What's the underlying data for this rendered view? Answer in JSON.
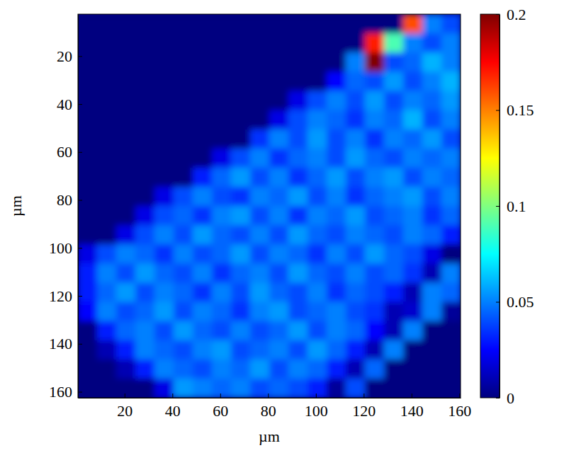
{
  "chart_data": {
    "type": "heatmap",
    "xlabel": "µm",
    "ylabel": "µm",
    "xlim": [
      0.5,
      160.5
    ],
    "ylim": [
      2.5,
      162.5
    ],
    "xticks": [
      20,
      40,
      60,
      80,
      100,
      120,
      140,
      160
    ],
    "yticks": [
      20,
      40,
      60,
      80,
      100,
      120,
      140,
      160
    ],
    "x": [
      4.5,
      12.5,
      20.5,
      28.5,
      36.5,
      44.5,
      52.5,
      60.5,
      68.5,
      76.5,
      84.5,
      92.5,
      100.5,
      108.5,
      116.5,
      124.5,
      132.5,
      140.5,
      148.5,
      156.5
    ],
    "y": [
      6.5,
      14.5,
      22.5,
      30.5,
      38.5,
      46.5,
      54.5,
      62.5,
      70.5,
      78.5,
      86.5,
      94.5,
      102.5,
      110.5,
      118.5,
      126.5,
      134.5,
      142.5,
      150.5,
      158.5
    ],
    "cells": [
      [
        0,
        0,
        0,
        0,
        0,
        0,
        0,
        0,
        0,
        0,
        0,
        0,
        0,
        0,
        0,
        0,
        0,
        0.16,
        0.05,
        0.04
      ],
      [
        0,
        0,
        0,
        0,
        0,
        0,
        0,
        0,
        0,
        0,
        0,
        0,
        0,
        0,
        0,
        0.17,
        0.09,
        0.05,
        0.04,
        0.05
      ],
      [
        0,
        0,
        0,
        0,
        0,
        0,
        0,
        0,
        0,
        0,
        0,
        0,
        0,
        0,
        0.05,
        0.2,
        0.04,
        0.045,
        0.06,
        0.05
      ],
      [
        0,
        0,
        0,
        0,
        0,
        0,
        0,
        0,
        0,
        0,
        0,
        0,
        0,
        0.025,
        0.045,
        0.04,
        0.055,
        0.04,
        0.05,
        0.06
      ],
      [
        0,
        0,
        0,
        0,
        0,
        0,
        0,
        0,
        0,
        0,
        0,
        0.02,
        0.04,
        0.05,
        0.04,
        0.055,
        0.04,
        0.05,
        0.045,
        0.055
      ],
      [
        0,
        0,
        0,
        0,
        0,
        0,
        0,
        0,
        0,
        0,
        0.02,
        0.04,
        0.05,
        0.045,
        0.035,
        0.05,
        0.045,
        0.06,
        0.04,
        0.05
      ],
      [
        0,
        0,
        0,
        0,
        0,
        0,
        0,
        0,
        0,
        0.035,
        0.05,
        0.04,
        0.055,
        0.04,
        0.05,
        0.035,
        0.05,
        0.045,
        0.055,
        0.04
      ],
      [
        0,
        0,
        0,
        0,
        0,
        0,
        0,
        0.02,
        0.04,
        0.05,
        0.035,
        0.045,
        0.05,
        0.04,
        0.055,
        0.045,
        0.04,
        0.05,
        0.045,
        0.05
      ],
      [
        0,
        0,
        0,
        0,
        0,
        0,
        0.03,
        0.045,
        0.055,
        0.04,
        0.05,
        0.035,
        0.045,
        0.055,
        0.04,
        0.05,
        0.055,
        0.04,
        0.05,
        0.045
      ],
      [
        0,
        0,
        0,
        0,
        0.02,
        0.04,
        0.05,
        0.04,
        0.035,
        0.05,
        0.045,
        0.055,
        0.04,
        0.05,
        0.035,
        0.045,
        0.05,
        0.055,
        0.04,
        0.05
      ],
      [
        0,
        0,
        0,
        0.02,
        0.04,
        0.045,
        0.035,
        0.05,
        0.055,
        0.04,
        0.05,
        0.035,
        0.05,
        0.045,
        0.055,
        0.04,
        0.045,
        0.05,
        0.035,
        0.045
      ],
      [
        0,
        0,
        0.02,
        0.04,
        0.05,
        0.04,
        0.055,
        0.045,
        0.04,
        0.05,
        0.04,
        0.055,
        0.045,
        0.04,
        0.05,
        0.045,
        0.04,
        0.05,
        0.045,
        0.03
      ],
      [
        0.02,
        0.04,
        0.05,
        0.045,
        0.035,
        0.05,
        0.04,
        0.045,
        0.055,
        0.04,
        0.05,
        0.045,
        0.035,
        0.05,
        0.04,
        0.055,
        0.045,
        0.04,
        0.02,
        0
      ],
      [
        0.03,
        0.05,
        0.04,
        0.055,
        0.045,
        0.04,
        0.05,
        0.035,
        0.045,
        0.05,
        0.04,
        0.055,
        0.045,
        0.04,
        0.05,
        0.04,
        0.045,
        0.035,
        0.01,
        0.05
      ],
      [
        0.03,
        0.045,
        0.055,
        0.04,
        0.05,
        0.045,
        0.035,
        0.05,
        0.04,
        0.055,
        0.045,
        0.04,
        0.05,
        0.035,
        0.045,
        0.04,
        0.03,
        0.01,
        0.05,
        0.045
      ],
      [
        0.025,
        0.05,
        0.04,
        0.045,
        0.055,
        0.04,
        0.05,
        0.045,
        0.035,
        0.05,
        0.055,
        0.04,
        0.045,
        0.05,
        0.04,
        0.035,
        0.01,
        0.015,
        0.05,
        0.005
      ],
      [
        0,
        0.03,
        0.045,
        0.05,
        0.04,
        0.055,
        0.045,
        0.04,
        0.05,
        0.04,
        0.045,
        0.055,
        0.04,
        0.05,
        0.045,
        0.025,
        0.01,
        0.05,
        0,
        0
      ],
      [
        0,
        0.01,
        0.03,
        0.05,
        0.045,
        0.04,
        0.05,
        0.055,
        0.04,
        0.045,
        0.05,
        0.04,
        0.055,
        0.045,
        0.03,
        0.01,
        0.05,
        0,
        0,
        0
      ],
      [
        0,
        0,
        0.01,
        0.03,
        0.05,
        0.045,
        0.04,
        0.05,
        0.045,
        0.055,
        0.04,
        0.05,
        0.045,
        0.03,
        0.01,
        0.045,
        0,
        0,
        0,
        0
      ],
      [
        0,
        0,
        0,
        0,
        0.02,
        0.055,
        0.05,
        0.045,
        0.05,
        0.04,
        0.045,
        0.04,
        0.03,
        0.005,
        0.04,
        0,
        0,
        0,
        0,
        0
      ]
    ],
    "colorbar": {
      "range": [
        0,
        0.2
      ],
      "ticks": [
        0,
        0.05,
        0.1,
        0.15,
        0.2
      ]
    }
  }
}
